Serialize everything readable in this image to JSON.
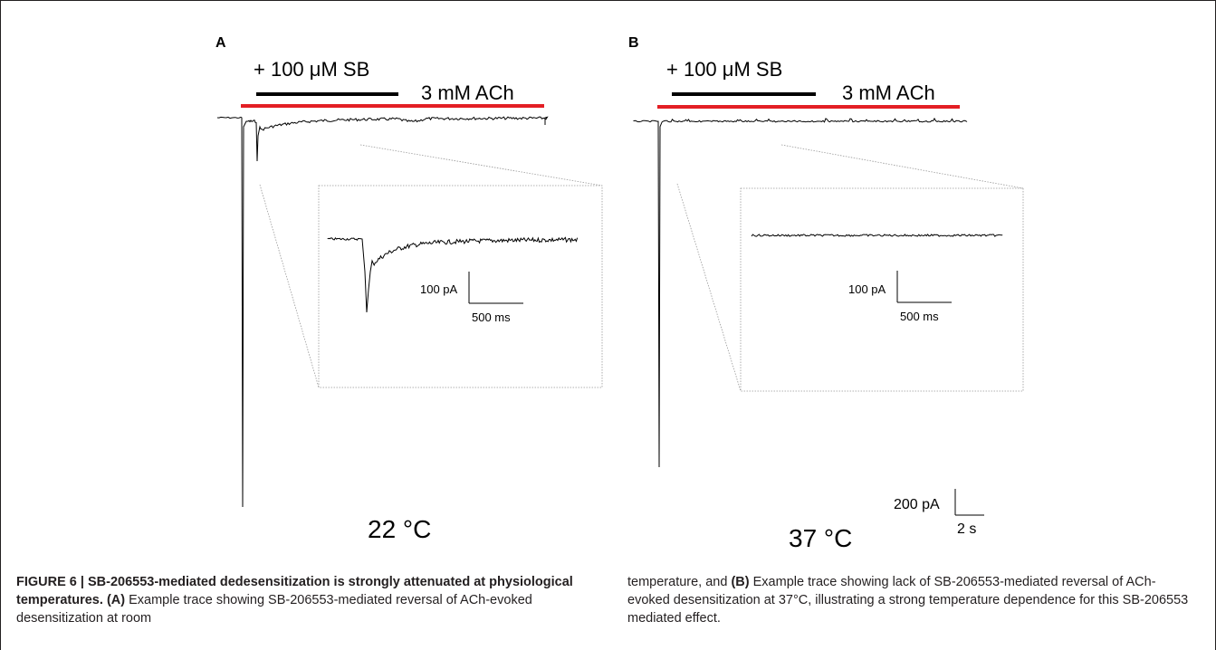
{
  "figure": {
    "panels": [
      {
        "letter": "A",
        "drug_label": "+ 100 μM SB",
        "agonist_label": "3 mM ACh",
        "temperature": "22 °C",
        "inset_scale_y": "100 pA",
        "inset_scale_x": "500 ms"
      },
      {
        "letter": "B",
        "drug_label": "+ 100 μM SB",
        "agonist_label": "3 mM ACh",
        "temperature": "37 °C",
        "inset_scale_y": "100 pA",
        "inset_scale_x": "500 ms"
      }
    ],
    "main_scale_y": "200 pA",
    "main_scale_x": "2 s",
    "colors": {
      "agonist_bar": "#e31e24",
      "drug_bar": "#000000",
      "trace": "#000000",
      "zoom_lines": "#999999"
    }
  },
  "caption": {
    "figure_label": "FIGURE 6 | SB-206553-mediated dedesensitization is strongly attenuated at physiological temperatures.",
    "left_a": "(A)",
    "left_text": " Example trace showing SB-206553-mediated reversal of ACh-evoked desensitization at room",
    "right_text_1": "temperature, and ",
    "right_b": "(B)",
    "right_text_2": " Example trace showing lack of SB-206553-mediated reversal of ACh-evoked desensitization at 37°C, illustrating a strong temperature dependence for this SB-206553 mediated effect."
  }
}
